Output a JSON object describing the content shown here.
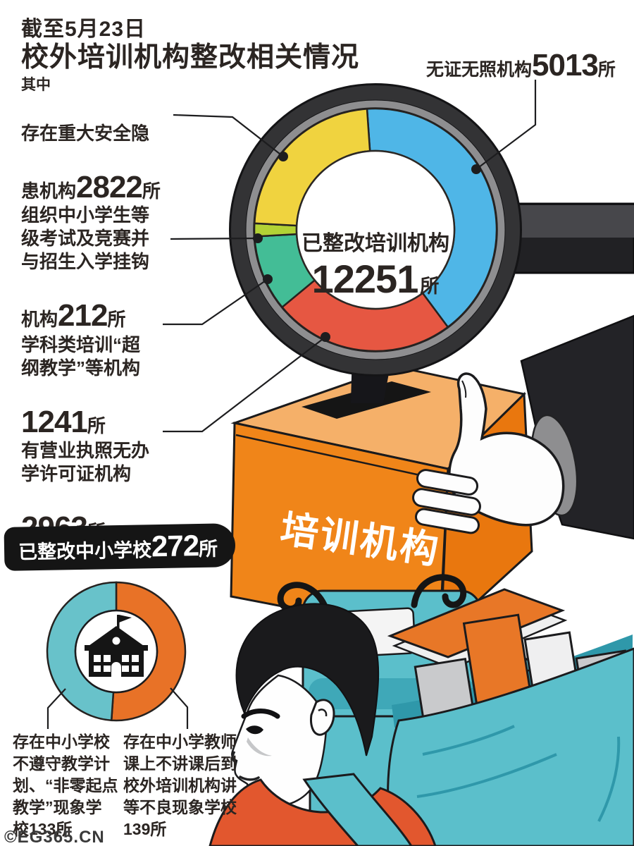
{
  "title": {
    "line1": "截至5月23日",
    "line2": "校外培训机构整改相关情况",
    "qualifier": "其中"
  },
  "center": {
    "title": "已整改培训机构",
    "value": "12251",
    "unit": "所"
  },
  "callouts": {
    "safety": {
      "line1": "存在重大安全隐",
      "pre": "患机构",
      "value": "2822",
      "unit": "所"
    },
    "exam": {
      "lines": [
        "组织中小学生等",
        "级考试及竞赛并",
        "与招生入学挂钩"
      ],
      "pre": "机构",
      "value": "212",
      "unit": "所"
    },
    "beyond": {
      "lines": [
        "学科类培训“超",
        "纲教学”等机构"
      ],
      "pre": "",
      "value": "1241",
      "unit": "所"
    },
    "license": {
      "lines": [
        "有营业执照无办",
        "学许可证机构"
      ],
      "pre": "",
      "value": "2963",
      "unit": "所"
    },
    "nocert": {
      "pre": "无证无照机构",
      "value": "5013",
      "unit": "所"
    }
  },
  "banner": {
    "pre": "已整改中小学校",
    "value": "272",
    "unit": "所"
  },
  "box_label": "培训机构",
  "notes": {
    "left": [
      "存在中小学校",
      "不遵守教学计",
      "划、“非零起点",
      "教学”现象学",
      "校133所"
    ],
    "right": [
      "存在中小学教师",
      "课上不讲课后到",
      "校外培训机构讲",
      "等不良现象学校",
      "139所"
    ]
  },
  "credit": "©EG365.CN",
  "colors": {
    "ink": "#2b2522",
    "ring_dark": "#333335",
    "ring_gray": "#8E8E90",
    "box_front": "#F08519",
    "box_top": "#F5B069",
    "box_side": "#E9770E",
    "backpack_teal": "#5BBFCB",
    "shirt_orange": "#E2572E"
  },
  "chart_data": [
    {
      "type": "pie",
      "variant": "donut",
      "title": "已整改培训机构",
      "total": 12251,
      "total_label": "12251所",
      "order": "clockwise-from-top",
      "start_angle_deg": -4,
      "legend_position": "callouts",
      "segments": [
        {
          "label": "无证无照机构",
          "value": 5013,
          "color": "#4FB6E7"
        },
        {
          "label": "有营业执照无办学许可证机构",
          "value": 2963,
          "color": "#E65742"
        },
        {
          "label": "学科类培训“超纲教学”等机构",
          "value": 1241,
          "color": "#43BD96"
        },
        {
          "label": "组织中小学生等级考试及竞赛并与招生入学挂钩机构",
          "value": 212,
          "color": "#B2D235"
        },
        {
          "label": "存在重大安全隐患机构",
          "value": 2822,
          "color": "#F0D33F"
        }
      ]
    },
    {
      "type": "pie",
      "variant": "donut",
      "title": "已整改中小学校272所",
      "total": 272,
      "order": "clockwise-from-top",
      "start_angle_deg": 0,
      "segments": [
        {
          "label": "存在中小学教师课上不讲课后到校外培训机构讲等不良现象学校",
          "value": 139,
          "color": "#E87227"
        },
        {
          "label": "存在中小学校不遵守教学计划、“非零起点教学”现象学校",
          "value": 133,
          "color": "#68C2CA"
        }
      ]
    }
  ]
}
